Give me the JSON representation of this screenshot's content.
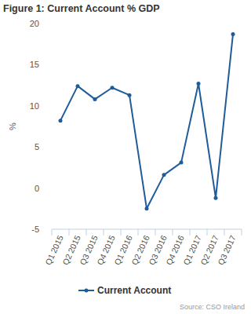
{
  "chart_data": {
    "type": "line",
    "title": "Figure 1: Current Account % GDP",
    "y_label": "%",
    "source": "Source: CSO Ireland",
    "categories": [
      "Q1 2015",
      "Q2 2015",
      "Q3 2015",
      "Q4 2015",
      "Q1 2016",
      "Q2 2016",
      "Q3 2016",
      "Q4 2016",
      "Q1 2017",
      "Q2 2017",
      "Q3 2017"
    ],
    "series": [
      {
        "name": "Current Account",
        "color": "#1f5c99",
        "marker": "circle",
        "values": [
          8.2,
          12.4,
          10.8,
          12.2,
          11.3,
          -2.5,
          1.6,
          3.1,
          12.7,
          -1.2,
          18.7
        ]
      }
    ],
    "ylim": [
      -5,
      20
    ],
    "yticks": [
      -5,
      0,
      5,
      10,
      15,
      20
    ],
    "grid": false,
    "legend": "bottom"
  }
}
